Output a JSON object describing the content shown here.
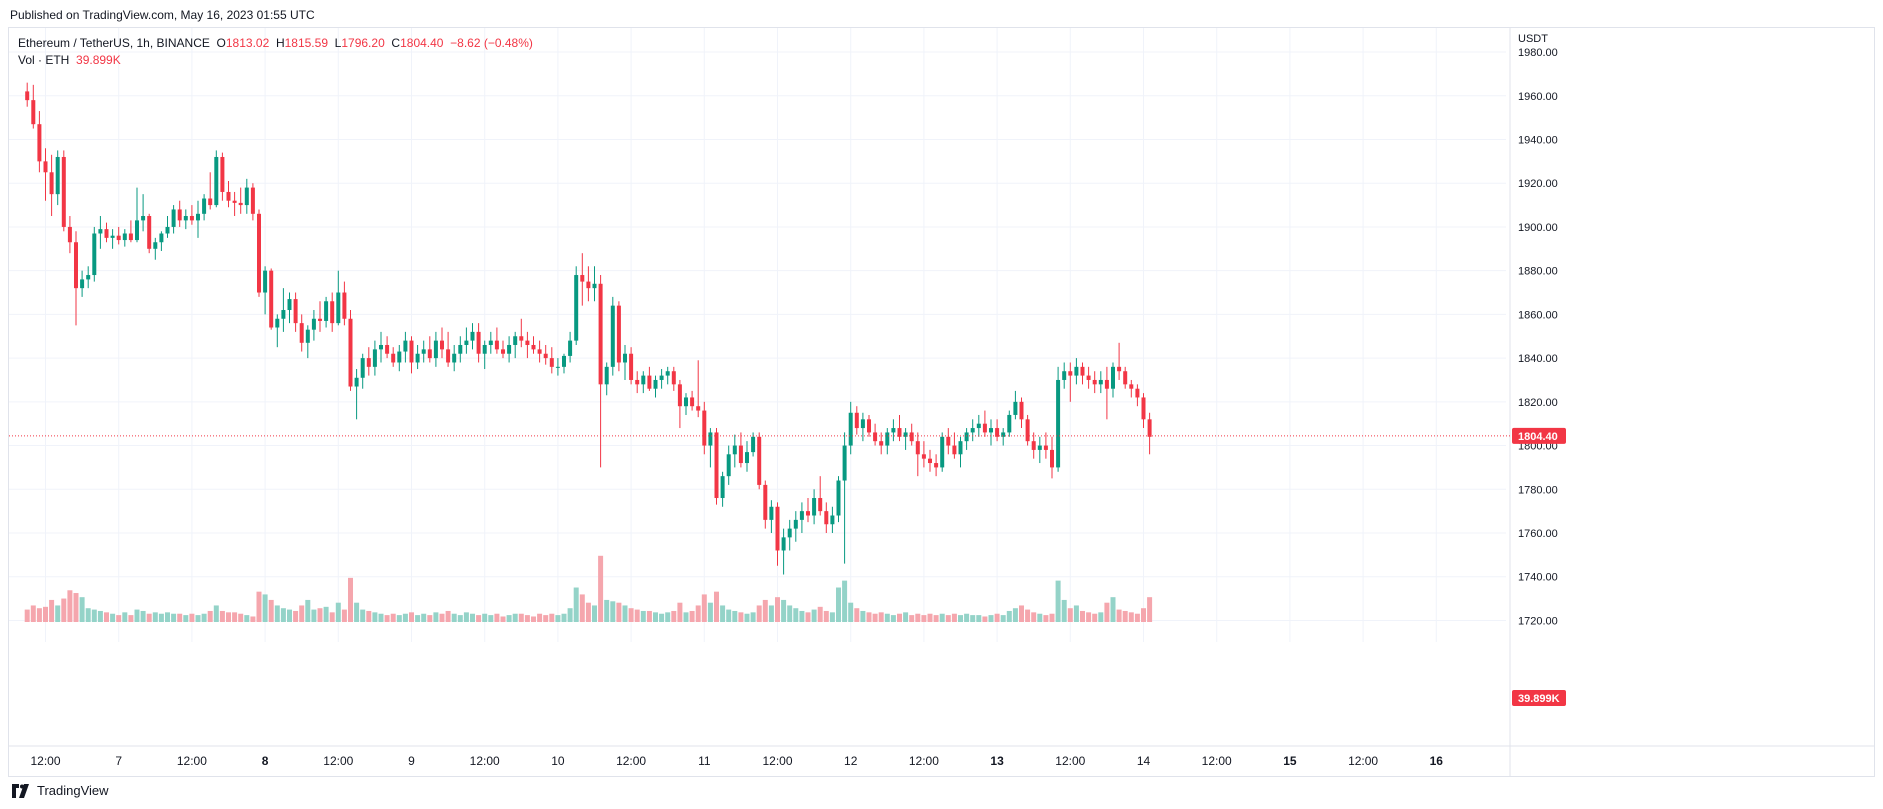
{
  "header": {
    "published": "Published on TradingView.com, May 16, 2023 01:55 UTC"
  },
  "legend": {
    "symbol": "Ethereum / TetherUS, 1h, BINANCE",
    "o_label": "O",
    "o_value": "1813.02",
    "h_label": "H",
    "h_value": "1815.59",
    "l_label": "L",
    "l_value": "1796.20",
    "c_label": "C",
    "c_value": "1804.40",
    "change": "−8.62 (−0.48%)",
    "vol_label": "Vol · ETH",
    "vol_value": "39.899K"
  },
  "footer": {
    "brand": "TradingView"
  },
  "colors": {
    "up": "#089981",
    "down": "#f23645",
    "vol_up": "#94d3c8",
    "vol_down": "#f5a6ad",
    "grid": "#f0f3fa",
    "axis_text": "#131722"
  },
  "chart_data": {
    "type": "candlestick",
    "quote_unit": "USDT",
    "y_ticks": [
      "1980.00",
      "1960.00",
      "1940.00",
      "1920.00",
      "1900.00",
      "1880.00",
      "1860.00",
      "1840.00",
      "1820.00",
      "1800.00",
      "1780.00",
      "1760.00",
      "1740.00",
      "1720.00"
    ],
    "ylim": [
      1717,
      1991
    ],
    "x_ticks": [
      {
        "hour": 0,
        "label": "12:00",
        "bold": false
      },
      {
        "hour": 12,
        "label": "7",
        "bold": false
      },
      {
        "hour": 24,
        "label": "12:00",
        "bold": false
      },
      {
        "hour": 36,
        "label": "8",
        "bold": true
      },
      {
        "hour": 48,
        "label": "12:00",
        "bold": false
      },
      {
        "hour": 60,
        "label": "9",
        "bold": false
      },
      {
        "hour": 72,
        "label": "12:00",
        "bold": false
      },
      {
        "hour": 84,
        "label": "10",
        "bold": false
      },
      {
        "hour": 96,
        "label": "12:00",
        "bold": false
      },
      {
        "hour": 108,
        "label": "11",
        "bold": false
      },
      {
        "hour": 120,
        "label": "12:00",
        "bold": false
      },
      {
        "hour": 132,
        "label": "12",
        "bold": false
      },
      {
        "hour": 144,
        "label": "12:00",
        "bold": false
      },
      {
        "hour": 156,
        "label": "13",
        "bold": true
      },
      {
        "hour": 168,
        "label": "12:00",
        "bold": false
      },
      {
        "hour": 180,
        "label": "14",
        "bold": false
      },
      {
        "hour": 192,
        "label": "12:00",
        "bold": false
      },
      {
        "hour": 204,
        "label": "15",
        "bold": true
      },
      {
        "hour": 216,
        "label": "12:00",
        "bold": false
      },
      {
        "hour": 228,
        "label": "16",
        "bold": true
      }
    ],
    "x_first_hour": -3,
    "last_price": "1804.40",
    "last_volume": "39.899K",
    "volume_max": 58,
    "series": [
      [
        1962,
        1966,
        1955,
        1958,
        9
      ],
      [
        1958,
        1965,
        1945,
        1947,
        12
      ],
      [
        1947,
        1953,
        1925,
        1930,
        10
      ],
      [
        1930,
        1936,
        1912,
        1925,
        11
      ],
      [
        1925,
        1933,
        1905,
        1915,
        16
      ],
      [
        1915,
        1935,
        1910,
        1932,
        12
      ],
      [
        1932,
        1935,
        1898,
        1900,
        17
      ],
      [
        1900,
        1905,
        1888,
        1893,
        23
      ],
      [
        1893,
        1898,
        1855,
        1872,
        21
      ],
      [
        1872,
        1880,
        1868,
        1876,
        18
      ],
      [
        1876,
        1882,
        1872,
        1878,
        10
      ],
      [
        1878,
        1900,
        1875,
        1897,
        9
      ],
      [
        1897,
        1905,
        1890,
        1899,
        8
      ],
      [
        1899,
        1902,
        1893,
        1895,
        7
      ],
      [
        1895,
        1899,
        1890,
        1896,
        6
      ],
      [
        1896,
        1900,
        1892,
        1894,
        5
      ],
      [
        1894,
        1899,
        1891,
        1897,
        7
      ],
      [
        1897,
        1903,
        1893,
        1894,
        5
      ],
      [
        1894,
        1918,
        1893,
        1903,
        9
      ],
      [
        1903,
        1915,
        1898,
        1905,
        8
      ],
      [
        1905,
        1906,
        1888,
        1890,
        6
      ],
      [
        1890,
        1895,
        1885,
        1893,
        7
      ],
      [
        1893,
        1898,
        1889,
        1897,
        6
      ],
      [
        1897,
        1905,
        1895,
        1900,
        7
      ],
      [
        1900,
        1910,
        1897,
        1908,
        6
      ],
      [
        1908,
        1912,
        1900,
        1903,
        6
      ],
      [
        1903,
        1908,
        1899,
        1905,
        5
      ],
      [
        1905,
        1910,
        1901,
        1903,
        6
      ],
      [
        1903,
        1912,
        1895,
        1906,
        5
      ],
      [
        1906,
        1915,
        1903,
        1913,
        6
      ],
      [
        1913,
        1925,
        1908,
        1910,
        8
      ],
      [
        1910,
        1935,
        1909,
        1932,
        12
      ],
      [
        1932,
        1934,
        1912,
        1916,
        8
      ],
      [
        1916,
        1921,
        1909,
        1912,
        7
      ],
      [
        1912,
        1916,
        1905,
        1911,
        7
      ],
      [
        1911,
        1918,
        1906,
        1910,
        6
      ],
      [
        1910,
        1922,
        1906,
        1918,
        5
      ],
      [
        1918,
        1920,
        1903,
        1906,
        4
      ],
      [
        1906,
        1908,
        1868,
        1870,
        22
      ],
      [
        1870,
        1882,
        1860,
        1880,
        20
      ],
      [
        1880,
        1881,
        1853,
        1854,
        16
      ],
      [
        1854,
        1860,
        1845,
        1858,
        12
      ],
      [
        1858,
        1872,
        1852,
        1862,
        10
      ],
      [
        1862,
        1870,
        1856,
        1867,
        9
      ],
      [
        1867,
        1870,
        1852,
        1856,
        8
      ],
      [
        1856,
        1860,
        1843,
        1847,
        12
      ],
      [
        1847,
        1855,
        1840,
        1853,
        16
      ],
      [
        1853,
        1862,
        1848,
        1858,
        9
      ],
      [
        1858,
        1866,
        1852,
        1857,
        10
      ],
      [
        1857,
        1868,
        1854,
        1866,
        11
      ],
      [
        1866,
        1870,
        1852,
        1856,
        7
      ],
      [
        1856,
        1880,
        1855,
        1870,
        14
      ],
      [
        1870,
        1875,
        1855,
        1858,
        9
      ],
      [
        1858,
        1862,
        1825,
        1827,
        32
      ],
      [
        1827,
        1835,
        1812,
        1831,
        14
      ],
      [
        1831,
        1842,
        1826,
        1840,
        9
      ],
      [
        1840,
        1845,
        1832,
        1836,
        8
      ],
      [
        1836,
        1848,
        1832,
        1844,
        7
      ],
      [
        1844,
        1852,
        1838,
        1846,
        6
      ],
      [
        1846,
        1850,
        1840,
        1842,
        5
      ],
      [
        1842,
        1845,
        1836,
        1838,
        6
      ],
      [
        1838,
        1846,
        1834,
        1843,
        5
      ],
      [
        1843,
        1852,
        1838,
        1848,
        6
      ],
      [
        1848,
        1850,
        1833,
        1838,
        7
      ],
      [
        1838,
        1846,
        1835,
        1842,
        5
      ],
      [
        1842,
        1848,
        1838,
        1844,
        6
      ],
      [
        1844,
        1850,
        1838,
        1840,
        5
      ],
      [
        1840,
        1852,
        1836,
        1848,
        7
      ],
      [
        1848,
        1854,
        1840,
        1844,
        6
      ],
      [
        1844,
        1852,
        1836,
        1838,
        8
      ],
      [
        1838,
        1846,
        1834,
        1842,
        6
      ],
      [
        1842,
        1850,
        1838,
        1846,
        5
      ],
      [
        1846,
        1854,
        1842,
        1848,
        7
      ],
      [
        1848,
        1856,
        1844,
        1852,
        6
      ],
      [
        1852,
        1856,
        1838,
        1842,
        5
      ],
      [
        1842,
        1848,
        1835,
        1846,
        6
      ],
      [
        1846,
        1852,
        1842,
        1848,
        5
      ],
      [
        1848,
        1854,
        1842,
        1844,
        6
      ],
      [
        1844,
        1848,
        1840,
        1842,
        4
      ],
      [
        1842,
        1850,
        1838,
        1846,
        5
      ],
      [
        1846,
        1852,
        1840,
        1850,
        6
      ],
      [
        1850,
        1858,
        1845,
        1848,
        6
      ],
      [
        1848,
        1852,
        1840,
        1846,
        5
      ],
      [
        1846,
        1850,
        1842,
        1844,
        4
      ],
      [
        1844,
        1848,
        1838,
        1842,
        6
      ],
      [
        1842,
        1846,
        1837,
        1840,
        5
      ],
      [
        1840,
        1845,
        1833,
        1836,
        6
      ],
      [
        1836,
        1840,
        1832,
        1836,
        5
      ],
      [
        1836,
        1842,
        1833,
        1841,
        6
      ],
      [
        1841,
        1852,
        1838,
        1848,
        10
      ],
      [
        1848,
        1882,
        1846,
        1878,
        25
      ],
      [
        1878,
        1888,
        1864,
        1875,
        20
      ],
      [
        1875,
        1882,
        1866,
        1872,
        14
      ],
      [
        1872,
        1882,
        1866,
        1874,
        12
      ],
      [
        1874,
        1878,
        1790,
        1828,
        48
      ],
      [
        1828,
        1838,
        1823,
        1836,
        16
      ],
      [
        1836,
        1868,
        1832,
        1864,
        15
      ],
      [
        1864,
        1866,
        1834,
        1838,
        14
      ],
      [
        1838,
        1846,
        1830,
        1842,
        12
      ],
      [
        1842,
        1845,
        1828,
        1830,
        10
      ],
      [
        1830,
        1834,
        1824,
        1828,
        9
      ],
      [
        1828,
        1834,
        1824,
        1832,
        8
      ],
      [
        1832,
        1836,
        1825,
        1826,
        8
      ],
      [
        1826,
        1832,
        1822,
        1830,
        7
      ],
      [
        1830,
        1835,
        1826,
        1832,
        6
      ],
      [
        1832,
        1836,
        1828,
        1834,
        7
      ],
      [
        1834,
        1836,
        1825,
        1828,
        8
      ],
      [
        1828,
        1830,
        1808,
        1818,
        14
      ],
      [
        1818,
        1824,
        1814,
        1822,
        7
      ],
      [
        1822,
        1825,
        1816,
        1818,
        8
      ],
      [
        1818,
        1839,
        1813,
        1816,
        12
      ],
      [
        1816,
        1820,
        1796,
        1800,
        20
      ],
      [
        1800,
        1808,
        1790,
        1806,
        14
      ],
      [
        1806,
        1808,
        1773,
        1776,
        22
      ],
      [
        1776,
        1788,
        1772,
        1786,
        12
      ],
      [
        1786,
        1800,
        1782,
        1796,
        9
      ],
      [
        1796,
        1805,
        1790,
        1800,
        8
      ],
      [
        1800,
        1806,
        1790,
        1792,
        7
      ],
      [
        1792,
        1802,
        1788,
        1797,
        6
      ],
      [
        1797,
        1806,
        1795,
        1804,
        7
      ],
      [
        1804,
        1806,
        1780,
        1782,
        12
      ],
      [
        1782,
        1784,
        1762,
        1766,
        16
      ],
      [
        1766,
        1775,
        1760,
        1772,
        12
      ],
      [
        1772,
        1774,
        1745,
        1752,
        18
      ],
      [
        1752,
        1762,
        1741,
        1758,
        16
      ],
      [
        1758,
        1766,
        1752,
        1762,
        12
      ],
      [
        1762,
        1770,
        1756,
        1766,
        10
      ],
      [
        1766,
        1774,
        1760,
        1770,
        8
      ],
      [
        1770,
        1776,
        1765,
        1768,
        7
      ],
      [
        1768,
        1780,
        1764,
        1776,
        9
      ],
      [
        1776,
        1786,
        1768,
        1770,
        11
      ],
      [
        1770,
        1774,
        1760,
        1764,
        8
      ],
      [
        1764,
        1772,
        1760,
        1768,
        7
      ],
      [
        1768,
        1786,
        1765,
        1784,
        25
      ],
      [
        1784,
        1806,
        1746,
        1800,
        30
      ],
      [
        1800,
        1820,
        1796,
        1815,
        14
      ],
      [
        1815,
        1818,
        1805,
        1808,
        10
      ],
      [
        1808,
        1815,
        1802,
        1812,
        8
      ],
      [
        1812,
        1814,
        1804,
        1806,
        7
      ],
      [
        1806,
        1810,
        1800,
        1802,
        6
      ],
      [
        1802,
        1806,
        1796,
        1800,
        7
      ],
      [
        1800,
        1808,
        1796,
        1806,
        6
      ],
      [
        1806,
        1812,
        1802,
        1808,
        5
      ],
      [
        1808,
        1814,
        1802,
        1804,
        6
      ],
      [
        1804,
        1808,
        1798,
        1806,
        7
      ],
      [
        1806,
        1810,
        1800,
        1802,
        5
      ],
      [
        1802,
        1806,
        1786,
        1796,
        6
      ],
      [
        1796,
        1802,
        1790,
        1794,
        5
      ],
      [
        1794,
        1798,
        1788,
        1792,
        6
      ],
      [
        1792,
        1796,
        1786,
        1790,
        5
      ],
      [
        1790,
        1806,
        1788,
        1804,
        6
      ],
      [
        1804,
        1808,
        1796,
        1800,
        5
      ],
      [
        1800,
        1806,
        1794,
        1796,
        6
      ],
      [
        1796,
        1804,
        1790,
        1802,
        5
      ],
      [
        1802,
        1808,
        1798,
        1806,
        6
      ],
      [
        1806,
        1812,
        1802,
        1808,
        5
      ],
      [
        1808,
        1814,
        1804,
        1810,
        5
      ],
      [
        1810,
        1816,
        1804,
        1806,
        4
      ],
      [
        1806,
        1812,
        1800,
        1808,
        5
      ],
      [
        1808,
        1812,
        1802,
        1804,
        6
      ],
      [
        1804,
        1808,
        1800,
        1806,
        5
      ],
      [
        1806,
        1816,
        1804,
        1814,
        8
      ],
      [
        1814,
        1825,
        1812,
        1820,
        10
      ],
      [
        1820,
        1822,
        1808,
        1812,
        12
      ],
      [
        1812,
        1814,
        1800,
        1802,
        9
      ],
      [
        1802,
        1806,
        1794,
        1798,
        7
      ],
      [
        1798,
        1804,
        1792,
        1800,
        6
      ],
      [
        1800,
        1806,
        1794,
        1798,
        5
      ],
      [
        1798,
        1804,
        1785,
        1790,
        6
      ],
      [
        1790,
        1836,
        1788,
        1830,
        30
      ],
      [
        1830,
        1838,
        1826,
        1834,
        16
      ],
      [
        1834,
        1838,
        1820,
        1832,
        10
      ],
      [
        1832,
        1840,
        1828,
        1836,
        12
      ],
      [
        1836,
        1838,
        1828,
        1832,
        8
      ],
      [
        1832,
        1836,
        1826,
        1830,
        7
      ],
      [
        1830,
        1834,
        1824,
        1828,
        6
      ],
      [
        1828,
        1834,
        1824,
        1830,
        7
      ],
      [
        1830,
        1836,
        1812,
        1826,
        14
      ],
      [
        1826,
        1838,
        1822,
        1836,
        18
      ],
      [
        1836,
        1847,
        1830,
        1834,
        9
      ],
      [
        1834,
        1836,
        1826,
        1828,
        8
      ],
      [
        1828,
        1830,
        1822,
        1826,
        7
      ],
      [
        1826,
        1828,
        1818,
        1822,
        6
      ],
      [
        1822,
        1824,
        1808,
        1812,
        10
      ],
      [
        1812,
        1815,
        1796,
        1804,
        18
      ]
    ]
  }
}
